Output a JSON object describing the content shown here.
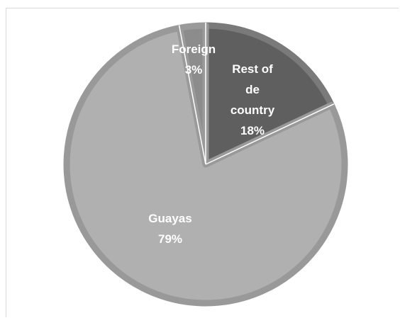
{
  "chart_data": {
    "type": "pie",
    "slices": [
      {
        "label_lines": [
          "Rest of",
          "de",
          "country"
        ],
        "pct_label": "18%",
        "value": 18,
        "color": "#5f5f5f",
        "border": "#7a7a7a"
      },
      {
        "label_lines": [
          "Guayas"
        ],
        "pct_label": "79%",
        "value": 79,
        "color": "#b0b0b0",
        "border": "#999999"
      },
      {
        "label_lines": [
          "Foreign"
        ],
        "pct_label": "3%",
        "value": 3,
        "color": "#8c8c8c",
        "border": "#9a9a9a"
      }
    ]
  }
}
